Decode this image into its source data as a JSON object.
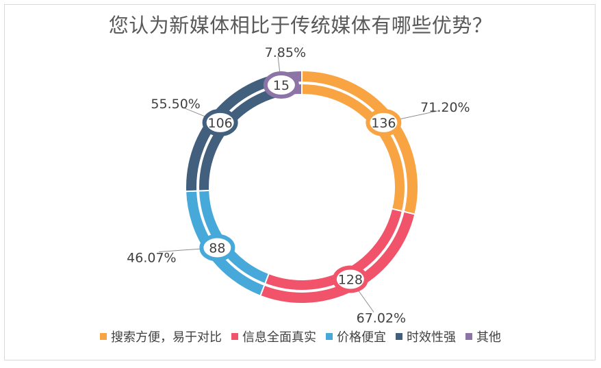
{
  "chart_data": {
    "type": "pie",
    "title": "您认为新媒体相比于传统媒体有哪些优势？",
    "categories": [
      "搜索方便，易于对比",
      "信息全面真实",
      "价格便宜",
      "时效性强",
      "其他"
    ],
    "values": [
      136,
      128,
      88,
      106,
      15
    ],
    "percent_labels": [
      "71.20%",
      "67.02%",
      "46.07%",
      "55.50%",
      "7.85%"
    ],
    "colors": [
      "#F9A443",
      "#F1546A",
      "#47A8DA",
      "#42607E",
      "#8C75A6"
    ],
    "legend_position": "bottom"
  }
}
